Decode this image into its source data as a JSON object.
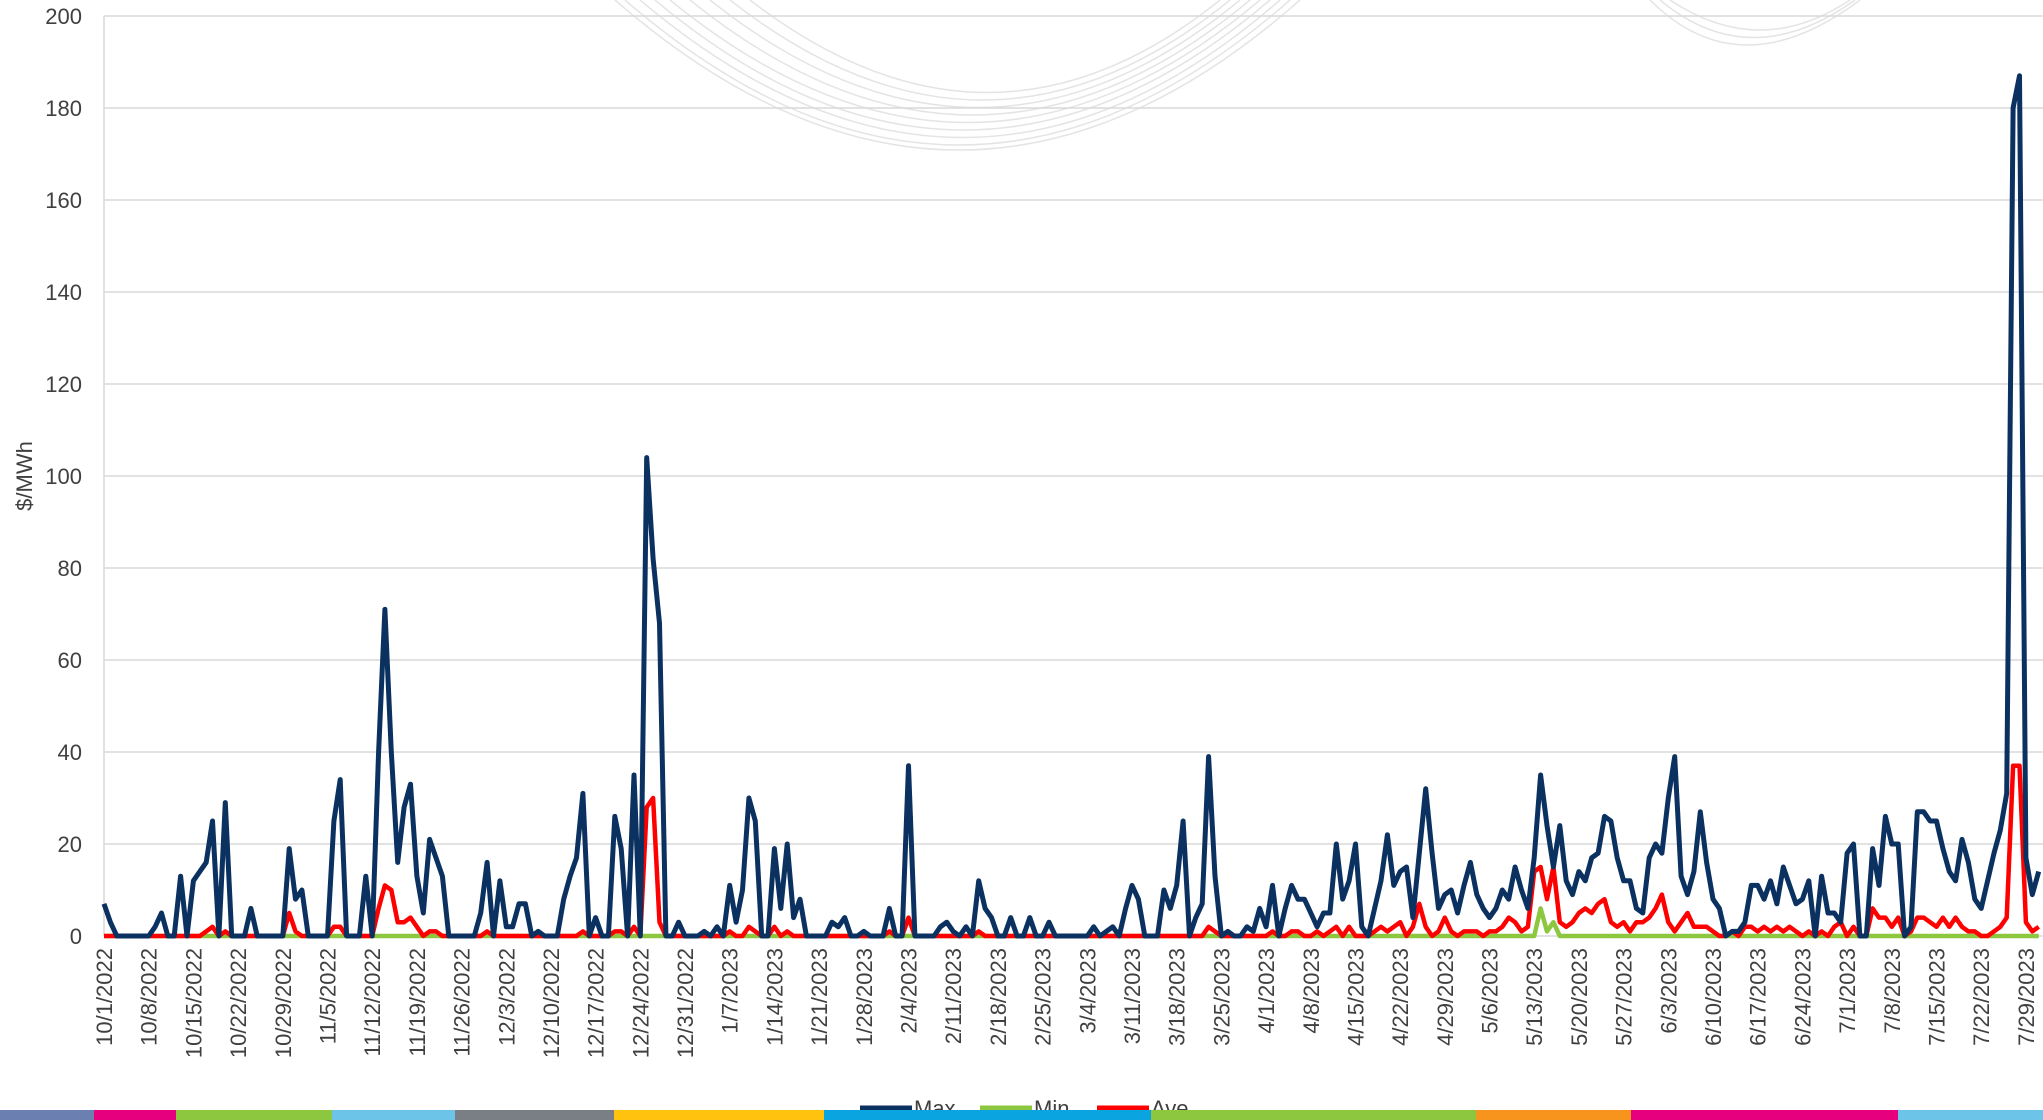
{
  "chart_data": {
    "type": "line",
    "y_label": "$/MWh",
    "categories": [
      "10/1/2022",
      null,
      null,
      null,
      null,
      null,
      null,
      "10/8/2022",
      null,
      null,
      null,
      null,
      null,
      null,
      "10/15/2022",
      null,
      null,
      null,
      null,
      null,
      null,
      "10/22/2022",
      null,
      null,
      null,
      null,
      null,
      null,
      "10/29/2022",
      null,
      null,
      null,
      null,
      null,
      null,
      "11/5/2022",
      null,
      null,
      null,
      null,
      null,
      null,
      "11/12/2022",
      null,
      null,
      null,
      null,
      null,
      null,
      "11/19/2022",
      null,
      null,
      null,
      null,
      null,
      null,
      "11/26/2022",
      null,
      null,
      null,
      null,
      null,
      null,
      "12/3/2022",
      null,
      null,
      null,
      null,
      null,
      null,
      "12/10/2022",
      null,
      null,
      null,
      null,
      null,
      null,
      "12/17/2022",
      null,
      null,
      null,
      null,
      null,
      null,
      "12/24/2022",
      null,
      null,
      null,
      null,
      null,
      null,
      "12/31/2022",
      null,
      null,
      null,
      null,
      null,
      null,
      "1/7/2023",
      null,
      null,
      null,
      null,
      null,
      null,
      "1/14/2023",
      null,
      null,
      null,
      null,
      null,
      null,
      "1/21/2023",
      null,
      null,
      null,
      null,
      null,
      null,
      "1/28/2023",
      null,
      null,
      null,
      null,
      null,
      null,
      "2/4/2023",
      null,
      null,
      null,
      null,
      null,
      null,
      "2/11/2023",
      null,
      null,
      null,
      null,
      null,
      null,
      "2/18/2023",
      null,
      null,
      null,
      null,
      null,
      null,
      "2/25/2023",
      null,
      null,
      null,
      null,
      null,
      null,
      "3/4/2023",
      null,
      null,
      null,
      null,
      null,
      null,
      "3/11/2023",
      null,
      null,
      null,
      null,
      null,
      null,
      "3/18/2023",
      null,
      null,
      null,
      null,
      null,
      null,
      "3/25/2023",
      null,
      null,
      null,
      null,
      null,
      null,
      "4/1/2023",
      null,
      null,
      null,
      null,
      null,
      null,
      "4/8/2023",
      null,
      null,
      null,
      null,
      null,
      null,
      "4/15/2023",
      null,
      null,
      null,
      null,
      null,
      null,
      "4/22/2023",
      null,
      null,
      null,
      null,
      null,
      null,
      "4/29/2023",
      null,
      null,
      null,
      null,
      null,
      null,
      "5/6/2023",
      null,
      null,
      null,
      null,
      null,
      null,
      "5/13/2023",
      null,
      null,
      null,
      null,
      null,
      null,
      "5/20/2023",
      null,
      null,
      null,
      null,
      null,
      null,
      "5/27/2023",
      null,
      null,
      null,
      null,
      null,
      null,
      "6/3/2023",
      null,
      null,
      null,
      null,
      null,
      null,
      "6/10/2023",
      null,
      null,
      null,
      null,
      null,
      null,
      "6/17/2023",
      null,
      null,
      null,
      null,
      null,
      null,
      "6/24/2023",
      null,
      null,
      null,
      null,
      null,
      null,
      "7/1/2023",
      null,
      null,
      null,
      null,
      null,
      null,
      "7/8/2023",
      null,
      null,
      null,
      null,
      null,
      null,
      "7/15/2023",
      null,
      null,
      null,
      null,
      null,
      null,
      "7/22/2023",
      null,
      null,
      null,
      null,
      null,
      null,
      "7/29/2023",
      null,
      null
    ],
    "series": [
      {
        "name": "Max",
        "color": "#0b3161",
        "values": [
          7,
          3,
          0,
          0,
          0,
          0,
          0,
          0,
          2,
          5,
          0,
          0,
          13,
          0,
          12,
          14,
          16,
          25,
          0,
          29,
          0,
          0,
          0,
          6,
          0,
          0,
          0,
          0,
          0,
          19,
          8,
          10,
          0,
          0,
          0,
          0,
          25,
          34,
          0,
          0,
          0,
          13,
          0,
          40,
          71,
          40,
          16,
          28,
          33,
          13,
          5,
          21,
          17,
          13,
          0,
          0,
          0,
          0,
          0,
          5,
          16,
          0,
          12,
          2,
          2,
          7,
          7,
          0,
          1,
          0,
          0,
          0,
          8,
          13,
          17,
          31,
          0,
          4,
          0,
          0,
          26,
          19,
          0,
          35,
          0,
          104,
          82,
          68,
          0,
          0,
          3,
          0,
          0,
          0,
          1,
          0,
          2,
          0,
          11,
          3,
          10,
          30,
          25,
          0,
          0,
          19,
          6,
          20,
          4,
          8,
          0,
          0,
          0,
          0,
          3,
          2,
          4,
          0,
          0,
          1,
          0,
          0,
          0,
          6,
          0,
          0,
          37,
          0,
          0,
          0,
          0,
          2,
          3,
          1,
          0,
          2,
          0,
          12,
          6,
          4,
          0,
          0,
          4,
          0,
          0,
          4,
          0,
          0,
          3,
          0,
          0,
          0,
          0,
          0,
          0,
          2,
          0,
          1,
          2,
          0,
          6,
          11,
          8,
          0,
          0,
          0,
          10,
          6,
          11,
          25,
          0,
          4,
          7,
          39,
          13,
          0,
          1,
          0,
          0,
          2,
          1,
          6,
          2,
          11,
          0,
          6,
          11,
          8,
          8,
          5,
          2,
          5,
          5,
          20,
          8,
          12,
          20,
          2,
          0,
          6,
          12,
          22,
          11,
          14,
          15,
          4,
          18,
          32,
          18,
          6,
          9,
          10,
          5,
          11,
          16,
          9,
          6,
          4,
          6,
          10,
          8,
          15,
          10,
          6,
          17,
          35,
          24,
          15,
          24,
          12,
          9,
          14,
          12,
          17,
          18,
          26,
          25,
          17,
          12,
          12,
          6,
          5,
          17,
          20,
          18,
          30,
          39,
          13,
          9,
          14,
          27,
          16,
          8,
          6,
          0,
          1,
          1,
          3,
          11,
          11,
          8,
          12,
          7,
          15,
          11,
          7,
          8,
          12,
          0,
          13,
          5,
          5,
          3,
          18,
          20,
          0,
          0,
          19,
          11,
          26,
          20,
          20,
          0,
          2,
          27,
          27,
          25,
          25,
          19,
          14,
          12,
          21,
          16,
          8,
          6,
          12,
          18,
          23,
          31,
          180,
          187,
          17,
          9,
          14
        ]
      },
      {
        "name": "Min",
        "color": "#8dc63f",
        "values": [
          0,
          0,
          0,
          0,
          0,
          0,
          0,
          0,
          0,
          0,
          0,
          0,
          0,
          0,
          0,
          0,
          0,
          0,
          0,
          0,
          0,
          0,
          0,
          0,
          0,
          0,
          0,
          0,
          0,
          0,
          0,
          0,
          0,
          0,
          0,
          0,
          0,
          0,
          0,
          0,
          0,
          0,
          0,
          0,
          0,
          0,
          0,
          0,
          0,
          0,
          0,
          0,
          0,
          0,
          0,
          0,
          0,
          0,
          0,
          0,
          0,
          0,
          0,
          0,
          0,
          0,
          0,
          0,
          0,
          0,
          0,
          0,
          0,
          0,
          0,
          0,
          0,
          0,
          0,
          0,
          0,
          0,
          0,
          0,
          0,
          0,
          0,
          0,
          0,
          0,
          0,
          0,
          0,
          0,
          0,
          0,
          0,
          0,
          0,
          0,
          0,
          0,
          0,
          0,
          0,
          0,
          0,
          0,
          0,
          0,
          0,
          0,
          0,
          0,
          0,
          0,
          0,
          0,
          0,
          0,
          0,
          0,
          0,
          0,
          0,
          0,
          0,
          0,
          0,
          0,
          0,
          0,
          0,
          0,
          0,
          0,
          0,
          0,
          0,
          0,
          0,
          0,
          0,
          0,
          0,
          0,
          0,
          0,
          0,
          0,
          0,
          0,
          0,
          0,
          0,
          0,
          0,
          0,
          0,
          0,
          0,
          0,
          0,
          0,
          0,
          0,
          0,
          0,
          0,
          0,
          0,
          0,
          0,
          0,
          0,
          0,
          0,
          0,
          0,
          0,
          0,
          0,
          0,
          0,
          0,
          0,
          0,
          0,
          0,
          0,
          0,
          0,
          0,
          0,
          0,
          0,
          0,
          0,
          0,
          0,
          0,
          0,
          0,
          0,
          0,
          0,
          0,
          0,
          0,
          0,
          0,
          0,
          0,
          0,
          0,
          0,
          0,
          0,
          0,
          0,
          0,
          0,
          0,
          0,
          0,
          6,
          1,
          3,
          0,
          0,
          0,
          0,
          0,
          0,
          0,
          0,
          0,
          0,
          0,
          0,
          0,
          0,
          0,
          0,
          0,
          0,
          0,
          0,
          0,
          0,
          0,
          0,
          0,
          0,
          0,
          0,
          0,
          0,
          0,
          0,
          0,
          0,
          0,
          0,
          0,
          0,
          0,
          0,
          0,
          0,
          0,
          0,
          0,
          0,
          0,
          0,
          0,
          0,
          0,
          0,
          0,
          0,
          0,
          0,
          0,
          0,
          0,
          0,
          0,
          0,
          0,
          0,
          0,
          0,
          0,
          0,
          0,
          0,
          0,
          0,
          0,
          0,
          0,
          0
        ]
      },
      {
        "name": "Ave",
        "color": "#ff0000",
        "values": [
          0,
          0,
          0,
          0,
          0,
          0,
          0,
          0,
          0,
          0,
          0,
          0,
          0,
          0,
          0,
          0,
          1,
          2,
          0,
          1,
          0,
          0,
          0,
          0,
          0,
          0,
          0,
          0,
          0,
          5,
          1,
          0,
          0,
          0,
          0,
          0,
          2,
          2,
          0,
          0,
          0,
          0,
          0,
          6,
          11,
          10,
          3,
          3,
          4,
          2,
          0,
          1,
          1,
          0,
          0,
          0,
          0,
          0,
          0,
          0,
          1,
          0,
          0,
          0,
          0,
          0,
          0,
          0,
          0,
          0,
          0,
          0,
          0,
          0,
          0,
          1,
          0,
          0,
          0,
          0,
          1,
          1,
          0,
          2,
          0,
          28,
          30,
          3,
          0,
          0,
          0,
          0,
          0,
          0,
          0,
          0,
          0,
          0,
          1,
          0,
          0,
          2,
          1,
          0,
          0,
          2,
          0,
          1,
          0,
          0,
          0,
          0,
          0,
          0,
          0,
          0,
          0,
          0,
          0,
          0,
          0,
          0,
          0,
          1,
          0,
          0,
          4,
          0,
          0,
          0,
          0,
          0,
          0,
          0,
          0,
          0,
          0,
          1,
          0,
          0,
          0,
          0,
          0,
          0,
          0,
          0,
          0,
          0,
          0,
          0,
          0,
          0,
          0,
          0,
          0,
          0,
          0,
          0,
          0,
          0,
          0,
          0,
          0,
          0,
          0,
          0,
          0,
          0,
          0,
          0,
          0,
          0,
          0,
          2,
          1,
          0,
          0,
          0,
          0,
          0,
          0,
          0,
          0,
          1,
          0,
          0,
          1,
          1,
          0,
          0,
          1,
          0,
          1,
          2,
          0,
          2,
          0,
          0,
          0,
          1,
          2,
          1,
          2,
          3,
          0,
          2,
          7,
          2,
          0,
          1,
          4,
          1,
          0,
          1,
          1,
          1,
          0,
          1,
          1,
          2,
          4,
          3,
          1,
          2,
          14,
          15,
          8,
          15,
          3,
          2,
          3,
          5,
          6,
          5,
          7,
          8,
          3,
          2,
          3,
          1,
          3,
          3,
          4,
          6,
          9,
          3,
          1,
          3,
          5,
          2,
          2,
          2,
          1,
          0,
          0,
          1,
          0,
          2,
          2,
          1,
          2,
          1,
          2,
          1,
          2,
          1,
          0,
          1,
          0,
          1,
          0,
          2,
          3,
          0,
          2,
          0,
          0,
          6,
          4,
          4,
          2,
          4,
          0,
          1,
          4,
          4,
          3,
          2,
          4,
          2,
          4,
          2,
          1,
          1,
          0,
          0,
          1,
          2,
          4,
          37,
          37,
          3,
          1,
          2
        ]
      }
    ],
    "ylim": [
      0,
      200
    ],
    "yticks": [
      0,
      20,
      40,
      60,
      80,
      100,
      120,
      140,
      160,
      180,
      200
    ],
    "grid": true
  }
}
